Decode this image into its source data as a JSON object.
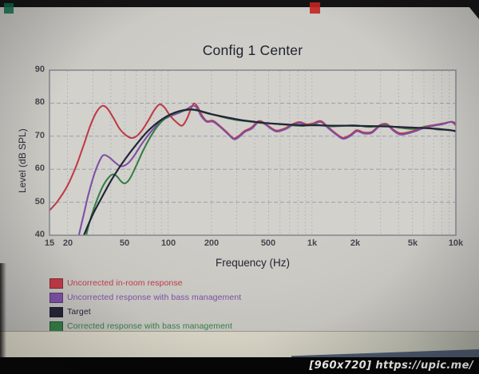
{
  "watermark": {
    "text": "[960x720] https://upic.me/"
  },
  "chart_data": {
    "type": "line",
    "title": "Config 1 Center",
    "xlabel": "Frequency (Hz)",
    "ylabel": "Level (dB SPL)",
    "x_scale": "log",
    "xlim": [
      15,
      10000
    ],
    "ylim": [
      40,
      90
    ],
    "grid": true,
    "legend_position": "below-left",
    "x_ticks": [
      {
        "value": 15,
        "label": "15"
      },
      {
        "value": 20,
        "label": "20"
      },
      {
        "value": 50,
        "label": "50"
      },
      {
        "value": 100,
        "label": "100"
      },
      {
        "value": 200,
        "label": "200"
      },
      {
        "value": 500,
        "label": "500"
      },
      {
        "value": 1000,
        "label": "1k"
      },
      {
        "value": 2000,
        "label": "2k"
      },
      {
        "value": 5000,
        "label": "5k"
      },
      {
        "value": 10000,
        "label": "10k"
      }
    ],
    "y_ticks": [
      {
        "value": 90,
        "label": "90"
      },
      {
        "value": 80,
        "label": "80"
      },
      {
        "value": 70,
        "label": "70"
      },
      {
        "value": 60,
        "label": "60"
      },
      {
        "value": 50,
        "label": "50"
      },
      {
        "value": 40,
        "label": "40"
      }
    ],
    "x_gridlines": [
      20,
      30,
      40,
      50,
      60,
      70,
      80,
      90,
      100,
      200,
      300,
      400,
      500,
      600,
      700,
      800,
      900,
      1000,
      2000,
      3000,
      4000,
      5000,
      6000,
      7000,
      8000,
      9000,
      10000
    ],
    "y_gridlines": [
      50,
      60,
      70,
      80
    ],
    "series": [
      {
        "name": "Uncorrected in-room response",
        "color": "#bf3a46",
        "points": [
          [
            15,
            47.5
          ],
          [
            17,
            50.2
          ],
          [
            20,
            55
          ],
          [
            23,
            61
          ],
          [
            26,
            67.5
          ],
          [
            29,
            73.5
          ],
          [
            32,
            77.5
          ],
          [
            35,
            79.2
          ],
          [
            38,
            78.3
          ],
          [
            42,
            75.3
          ],
          [
            46,
            72.3
          ],
          [
            50,
            70.6
          ],
          [
            55,
            69.5
          ],
          [
            60,
            69.9
          ],
          [
            66,
            71.8
          ],
          [
            73,
            74.8
          ],
          [
            80,
            77.8
          ],
          [
            87,
            79.6
          ],
          [
            94,
            78.8
          ],
          [
            103,
            76.3
          ],
          [
            114,
            74.3
          ],
          [
            125,
            73.2
          ],
          [
            135,
            75.2
          ],
          [
            145,
            78.5
          ],
          [
            152,
            79.9
          ],
          [
            161,
            78.8
          ],
          [
            172,
            76.3
          ],
          [
            186,
            74.6
          ],
          [
            205,
            74.7
          ],
          [
            225,
            73.4
          ],
          [
            255,
            71.3
          ],
          [
            285,
            69.4
          ],
          [
            310,
            70.1
          ],
          [
            340,
            71.6
          ],
          [
            380,
            72.6
          ],
          [
            425,
            74.6
          ],
          [
            470,
            73.9
          ],
          [
            520,
            72.5
          ],
          [
            570,
            71.7
          ],
          [
            650,
            72.4
          ],
          [
            730,
            73.6
          ],
          [
            820,
            74.3
          ],
          [
            920,
            73.6
          ],
          [
            1020,
            73.9
          ],
          [
            1150,
            74.6
          ],
          [
            1300,
            72.7
          ],
          [
            1480,
            70.7
          ],
          [
            1650,
            69.5
          ],
          [
            1850,
            70.4
          ],
          [
            2050,
            71.8
          ],
          [
            2300,
            71.1
          ],
          [
            2600,
            71.3
          ],
          [
            2950,
            73.3
          ],
          [
            3300,
            73.7
          ],
          [
            3700,
            71.9
          ],
          [
            4100,
            70.9
          ],
          [
            4700,
            71.2
          ],
          [
            5300,
            71.9
          ],
          [
            6100,
            72.9
          ],
          [
            7100,
            73.4
          ],
          [
            8200,
            73.9
          ],
          [
            9300,
            74.3
          ],
          [
            10000,
            73.3
          ]
        ]
      },
      {
        "name": "Uncorrected response with bass management",
        "color": "#7c4fa4",
        "points": [
          [
            24,
            40
          ],
          [
            26,
            46.5
          ],
          [
            28,
            52.5
          ],
          [
            31,
            59
          ],
          [
            34,
            63.2
          ],
          [
            36,
            64.3
          ],
          [
            39,
            63.6
          ],
          [
            43,
            62
          ],
          [
            47,
            60.9
          ],
          [
            52,
            61.6
          ],
          [
            58,
            64
          ],
          [
            65,
            67.4
          ],
          [
            73,
            70.4
          ],
          [
            82,
            73
          ],
          [
            92,
            74.9
          ],
          [
            104,
            76.1
          ],
          [
            118,
            77
          ],
          [
            134,
            78.1
          ],
          [
            148,
            79.2
          ],
          [
            158,
            78.7
          ],
          [
            170,
            76.1
          ],
          [
            185,
            74.4
          ],
          [
            205,
            74.4
          ],
          [
            226,
            73.1
          ],
          [
            256,
            71
          ],
          [
            286,
            69.1
          ],
          [
            312,
            69.8
          ],
          [
            342,
            71.3
          ],
          [
            382,
            72.3
          ],
          [
            427,
            74.3
          ],
          [
            472,
            73.6
          ],
          [
            522,
            72.2
          ],
          [
            572,
            71.4
          ],
          [
            652,
            72.1
          ],
          [
            732,
            73.3
          ],
          [
            822,
            74
          ],
          [
            922,
            73.3
          ],
          [
            1022,
            73.6
          ],
          [
            1152,
            74.3
          ],
          [
            1302,
            72.4
          ],
          [
            1482,
            70.4
          ],
          [
            1652,
            69.2
          ],
          [
            1852,
            70.1
          ],
          [
            2052,
            71.5
          ],
          [
            2302,
            70.8
          ],
          [
            2602,
            71
          ],
          [
            2952,
            73
          ],
          [
            3302,
            73.4
          ],
          [
            3702,
            71.6
          ],
          [
            4102,
            70.5
          ],
          [
            4702,
            70.9
          ],
          [
            5302,
            71.6
          ],
          [
            6102,
            72.6
          ],
          [
            7102,
            73.2
          ],
          [
            8202,
            73.7
          ],
          [
            9302,
            74.4
          ],
          [
            10000,
            73.9
          ]
        ]
      },
      {
        "name": "Target",
        "color": "#242438",
        "points": [
          [
            26,
            40
          ],
          [
            30,
            46.3
          ],
          [
            35,
            51.8
          ],
          [
            40,
            56.4
          ],
          [
            46,
            60.6
          ],
          [
            52,
            63.9
          ],
          [
            60,
            67.4
          ],
          [
            70,
            70.9
          ],
          [
            80,
            73.3
          ],
          [
            92,
            75.3
          ],
          [
            105,
            76.7
          ],
          [
            120,
            77.6
          ],
          [
            138,
            78.1
          ],
          [
            155,
            78
          ],
          [
            175,
            77.4
          ],
          [
            200,
            76.7
          ],
          [
            230,
            76.1
          ],
          [
            270,
            75.5
          ],
          [
            320,
            74.9
          ],
          [
            380,
            74.5
          ],
          [
            450,
            74.1
          ],
          [
            550,
            73.8
          ],
          [
            700,
            73.5
          ],
          [
            900,
            73.3
          ],
          [
            1100,
            73.3
          ],
          [
            1400,
            73.2
          ],
          [
            1800,
            73.2
          ],
          [
            2300,
            73.1
          ],
          [
            3000,
            73
          ],
          [
            4000,
            72.8
          ],
          [
            5000,
            72.6
          ],
          [
            6500,
            72.4
          ],
          [
            8000,
            72.1
          ],
          [
            10000,
            71.6
          ]
        ]
      },
      {
        "name": "Corrected response with bass management",
        "color": "#347d46",
        "points": [
          [
            27,
            40
          ],
          [
            29,
            45.2
          ],
          [
            32,
            50.6
          ],
          [
            35,
            54.6
          ],
          [
            38,
            57.1
          ],
          [
            41,
            58.4
          ],
          [
            44,
            57.9
          ],
          [
            47,
            56.4
          ],
          [
            50,
            55.7
          ],
          [
            54,
            57
          ],
          [
            60,
            61
          ],
          [
            67,
            65.6
          ],
          [
            75,
            69.6
          ],
          [
            84,
            72.9
          ],
          [
            95,
            75.3
          ],
          [
            108,
            76.7
          ],
          [
            122,
            77.5
          ],
          [
            140,
            78
          ],
          [
            158,
            77.8
          ],
          [
            180,
            77.1
          ],
          [
            210,
            76.4
          ],
          [
            250,
            75.6
          ],
          [
            300,
            74.9
          ],
          [
            360,
            74.5
          ],
          [
            440,
            74
          ],
          [
            540,
            73.8
          ],
          [
            680,
            73.4
          ],
          [
            850,
            73.1
          ],
          [
            1050,
            73.5
          ],
          [
            1300,
            73
          ],
          [
            1600,
            73.1
          ],
          [
            2000,
            73.3
          ],
          [
            2500,
            72.8
          ],
          [
            3200,
            73.2
          ],
          [
            4000,
            72.6
          ],
          [
            5000,
            72.2
          ],
          [
            6000,
            72.7
          ],
          [
            7500,
            72
          ],
          [
            9000,
            71.9
          ],
          [
            10000,
            71.4
          ]
        ]
      }
    ]
  }
}
